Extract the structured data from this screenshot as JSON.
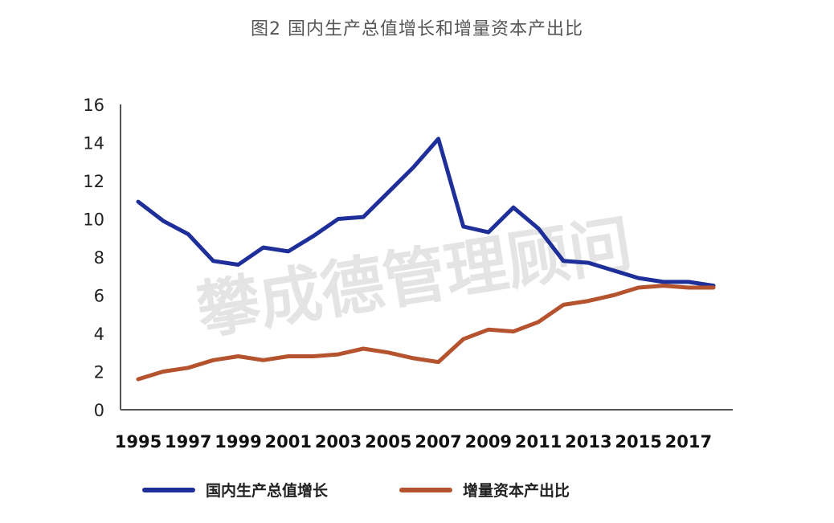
{
  "caption": "图2 国内生产总值增长和增量资本产出比",
  "watermark": "攀成德管理顾问",
  "colors": {
    "gdp": "#1f2f9a",
    "icor": "#b5532e",
    "axis": "#555555"
  },
  "chart_data": {
    "type": "line",
    "x": [
      1995,
      1996,
      1997,
      1998,
      1999,
      2000,
      2001,
      2002,
      2003,
      2004,
      2005,
      2006,
      2007,
      2008,
      2009,
      2010,
      2011,
      2012,
      2013,
      2014,
      2015,
      2016,
      2017,
      2018
    ],
    "xticks": [
      "1995",
      "1997",
      "1999",
      "2001",
      "2003",
      "2005",
      "2007",
      "2009",
      "2011",
      "2013",
      "2015",
      "2017"
    ],
    "ylim": [
      0,
      16
    ],
    "yticks": [
      "0",
      "2",
      "4",
      "6",
      "8",
      "10",
      "12",
      "14",
      "16"
    ],
    "series": [
      {
        "name": "国内生产总值增长",
        "values": [
          10.9,
          9.9,
          9.2,
          7.8,
          7.6,
          8.5,
          8.3,
          9.1,
          10.0,
          10.1,
          11.4,
          12.7,
          14.2,
          9.6,
          9.3,
          10.6,
          9.5,
          7.8,
          7.7,
          7.3,
          6.9,
          6.7,
          6.7,
          6.5
        ]
      },
      {
        "name": "增量资本产出比",
        "values": [
          1.6,
          2.0,
          2.2,
          2.6,
          2.8,
          2.6,
          2.8,
          2.8,
          2.9,
          3.2,
          3.0,
          2.7,
          2.5,
          3.7,
          4.2,
          4.1,
          4.6,
          5.5,
          5.7,
          6.0,
          6.4,
          6.5,
          6.4,
          6.4
        ]
      }
    ],
    "legend": "bottom",
    "grid": false
  }
}
